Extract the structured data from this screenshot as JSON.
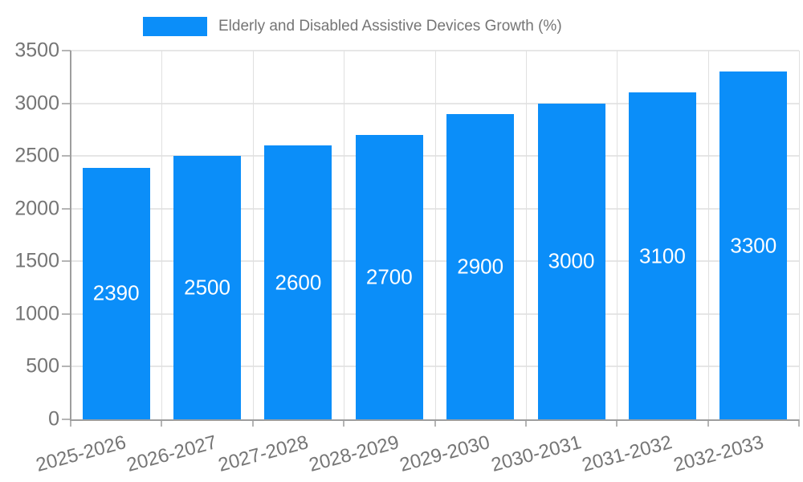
{
  "chart_data": {
    "type": "bar",
    "title": "",
    "legend_position": "top",
    "categories": [
      "2025-2026",
      "2026-2027",
      "2027-2028",
      "2028-2029",
      "2029-2030",
      "2030-2031",
      "2031-2032",
      "2032-2033"
    ],
    "series": [
      {
        "name": "Elderly and Disabled Assistive Devices Growth (%)",
        "values": [
          2390,
          2500,
          2600,
          2700,
          2900,
          3000,
          3100,
          3300
        ]
      }
    ],
    "bar_value_labels_shown": true,
    "xlabel": "",
    "ylabel": "",
    "ylim": [
      0,
      3500
    ],
    "yticks": [
      0,
      500,
      1000,
      1500,
      2000,
      2500,
      3000,
      3500
    ],
    "grid": true,
    "colors": {
      "bar": "#0b8ef9",
      "axis": "#9e9e9e",
      "gridline": "#e6e6e6",
      "vertical_gridline": "#e0e0e0",
      "tick": "#b5b5b5",
      "text": "#757575",
      "bar_label_text": "#ffffff",
      "background": "#ffffff"
    }
  }
}
